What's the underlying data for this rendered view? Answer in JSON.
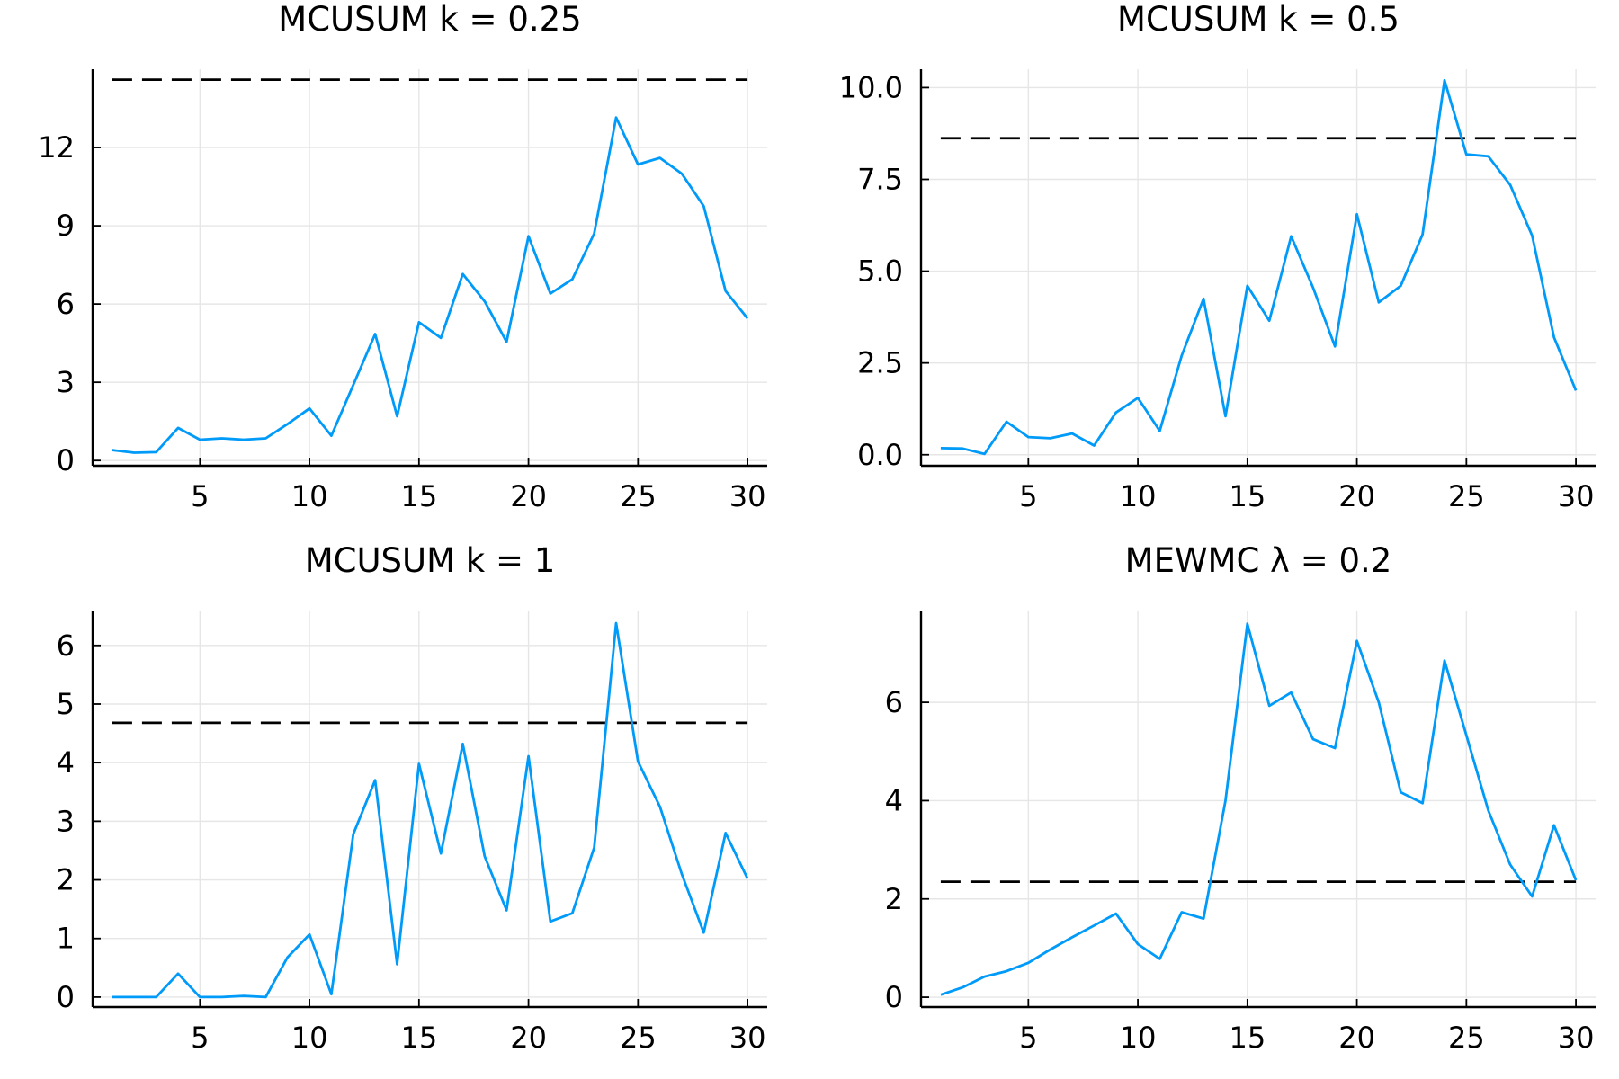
{
  "colors": {
    "series": "#009af9",
    "limit": "#000000"
  },
  "chart_data": [
    {
      "type": "line",
      "title": "MCUSUM k = 0.25",
      "xlabel": "",
      "ylabel": "",
      "xlim": [
        0.1,
        30.9
      ],
      "ylim": [
        -0.2,
        15.0
      ],
      "xticks": [
        5,
        10,
        15,
        20,
        25,
        30
      ],
      "yticks": [
        0,
        3,
        6,
        9,
        12
      ],
      "ytick_labels": [
        "0",
        "3",
        "6",
        "9",
        "12"
      ],
      "grid": true,
      "control_limit": 14.6,
      "x": [
        1,
        2,
        3,
        4,
        5,
        6,
        7,
        8,
        9,
        10,
        11,
        12,
        13,
        14,
        15,
        16,
        17,
        18,
        19,
        20,
        21,
        22,
        23,
        24,
        25,
        26,
        27,
        28,
        29,
        30
      ],
      "values": [
        0.4,
        0.3,
        0.32,
        1.25,
        0.8,
        0.85,
        0.8,
        0.85,
        1.4,
        2.0,
        0.95,
        2.9,
        4.85,
        1.7,
        5.3,
        4.7,
        7.15,
        6.1,
        4.55,
        8.6,
        6.4,
        6.95,
        8.7,
        13.15,
        11.35,
        11.6,
        11.0,
        9.75,
        6.5,
        5.45
      ]
    },
    {
      "type": "line",
      "title": "MCUSUM k = 0.5",
      "xlabel": "",
      "ylabel": "",
      "xlim": [
        0.1,
        30.9
      ],
      "ylim": [
        -0.3,
        10.5
      ],
      "xticks": [
        5,
        10,
        15,
        20,
        25,
        30
      ],
      "yticks": [
        0,
        2.5,
        5,
        7.5,
        10
      ],
      "ytick_labels": [
        "0.0",
        "2.5",
        "5.0",
        "7.5",
        "10.0"
      ],
      "grid": true,
      "control_limit": 8.62,
      "x": [
        1,
        2,
        3,
        4,
        5,
        6,
        7,
        8,
        9,
        10,
        11,
        12,
        13,
        14,
        15,
        16,
        17,
        18,
        19,
        20,
        21,
        22,
        23,
        24,
        25,
        26,
        27,
        28,
        29,
        30
      ],
      "values": [
        0.18,
        0.17,
        0.02,
        0.9,
        0.48,
        0.45,
        0.58,
        0.25,
        1.15,
        1.55,
        0.65,
        2.7,
        4.25,
        1.05,
        4.6,
        3.65,
        5.95,
        4.55,
        2.95,
        6.55,
        4.15,
        4.6,
        6.0,
        10.2,
        8.18,
        8.13,
        7.35,
        5.97,
        3.2,
        1.75
      ]
    },
    {
      "type": "line",
      "title": "MCUSUM k = 1",
      "xlabel": "",
      "ylabel": "",
      "xlim": [
        0.1,
        30.9
      ],
      "ylim": [
        -0.17,
        6.58
      ],
      "xticks": [
        5,
        10,
        15,
        20,
        25,
        30
      ],
      "yticks": [
        0,
        1,
        2,
        3,
        4,
        5,
        6
      ],
      "ytick_labels": [
        "0",
        "1",
        "2",
        "3",
        "4",
        "5",
        "6"
      ],
      "grid": true,
      "control_limit": 4.68,
      "x": [
        1,
        2,
        3,
        4,
        5,
        6,
        7,
        8,
        9,
        10,
        11,
        12,
        13,
        14,
        15,
        16,
        17,
        18,
        19,
        20,
        21,
        22,
        23,
        24,
        25,
        26,
        27,
        28,
        29,
        30
      ],
      "values": [
        0.0,
        0.0,
        0.0,
        0.4,
        0.0,
        0.0,
        0.02,
        0.0,
        0.68,
        1.07,
        0.05,
        2.78,
        3.7,
        0.56,
        3.98,
        2.45,
        4.32,
        2.4,
        1.48,
        4.11,
        1.29,
        1.43,
        2.55,
        6.38,
        4.02,
        3.25,
        2.1,
        1.1,
        2.8,
        2.02
      ]
    },
    {
      "type": "line",
      "title": "MEWMC λ = 0.2",
      "xlabel": "",
      "ylabel": "",
      "xlim": [
        0.1,
        30.9
      ],
      "ylim": [
        -0.2,
        7.85
      ],
      "xticks": [
        5,
        10,
        15,
        20,
        25,
        30
      ],
      "yticks": [
        0,
        2,
        4,
        6
      ],
      "ytick_labels": [
        "0",
        "2",
        "4",
        "6"
      ],
      "grid": true,
      "control_limit": 2.35,
      "x": [
        1,
        2,
        3,
        4,
        5,
        6,
        7,
        8,
        9,
        10,
        11,
        12,
        13,
        14,
        15,
        16,
        17,
        18,
        19,
        20,
        21,
        22,
        23,
        24,
        25,
        26,
        27,
        28,
        29,
        30
      ],
      "values": [
        0.05,
        0.2,
        0.42,
        0.53,
        0.7,
        0.97,
        1.22,
        1.46,
        1.7,
        1.08,
        0.78,
        1.73,
        1.6,
        4.0,
        7.6,
        5.93,
        6.2,
        5.25,
        5.07,
        7.25,
        6.0,
        4.17,
        3.95,
        6.85,
        5.33,
        3.8,
        2.7,
        2.05,
        3.5,
        2.38
      ]
    }
  ]
}
